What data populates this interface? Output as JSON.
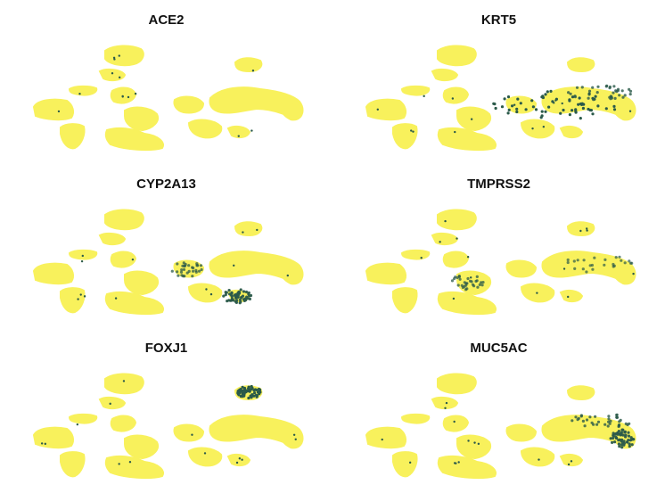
{
  "chart_data": [
    {
      "type": "scatter",
      "title": "ACE2",
      "colors": {
        "low": "#f8f15c",
        "high": "#2b5a4a"
      },
      "expression_hotspots": []
    },
    {
      "type": "scatter",
      "title": "KRT5",
      "colors": {
        "low": "#f8f15c",
        "high": "#2b5a4a"
      },
      "expression_hotspots": [
        {
          "region": "right-central-arm",
          "intensity": 1.0
        },
        {
          "region": "right-upper-arm",
          "intensity": 0.6
        }
      ]
    },
    {
      "type": "scatter",
      "title": "CYP2A13",
      "colors": {
        "low": "#f8f15c",
        "high": "#2b5a4a"
      },
      "expression_hotspots": [
        {
          "region": "right-lower-blob",
          "intensity": 0.9
        },
        {
          "region": "center-right-blob",
          "intensity": 0.5
        }
      ]
    },
    {
      "type": "scatter",
      "title": "TMPRSS2",
      "colors": {
        "low": "#f8f15c",
        "high": "#2b5a4a"
      },
      "expression_hotspots": [
        {
          "region": "center-blob",
          "intensity": 0.5
        },
        {
          "region": "right-arm",
          "intensity": 0.4
        }
      ]
    },
    {
      "type": "scatter",
      "title": "FOXJ1",
      "colors": {
        "low": "#f8f15c",
        "high": "#2b5a4a"
      },
      "expression_hotspots": [
        {
          "region": "top-right-island",
          "intensity": 1.0
        }
      ]
    },
    {
      "type": "scatter",
      "title": "MUC5AC",
      "colors": {
        "low": "#f8f15c",
        "high": "#2b5a4a"
      },
      "expression_hotspots": [
        {
          "region": "right-arm-tip",
          "intensity": 0.9
        },
        {
          "region": "right-upper-arm",
          "intensity": 0.6
        }
      ]
    }
  ]
}
